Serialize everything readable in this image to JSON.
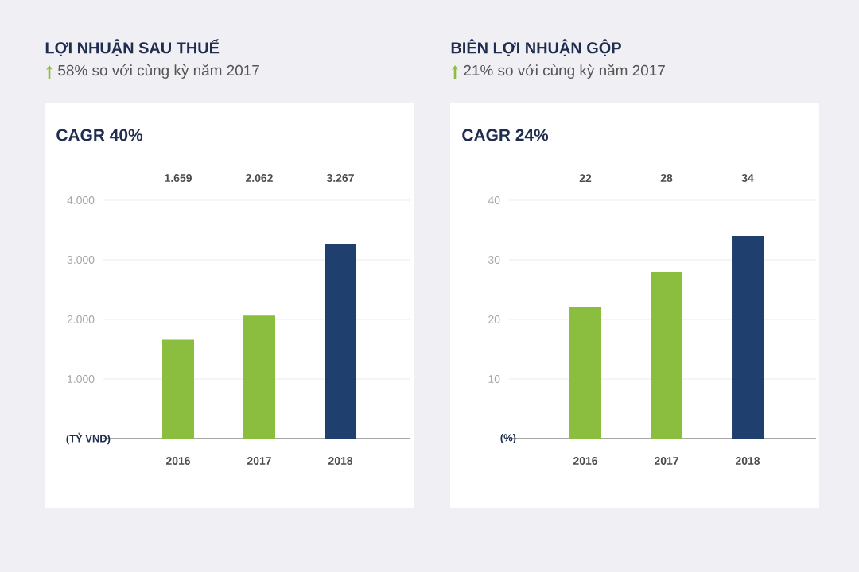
{
  "chart_data": [
    {
      "type": "bar",
      "title": "LỢI NHUẬN SAU THUẾ",
      "subtitle": "58% so với cùng kỳ năm 2017",
      "annotations": [
        "CAGR 40%"
      ],
      "ylabel": "(TỶ VND)",
      "categories": [
        "2016",
        "2017",
        "2018"
      ],
      "values": [
        1659,
        2062,
        3267
      ],
      "value_labels": [
        "1.659",
        "2.062",
        "3.267"
      ],
      "colors": [
        "#8bbd3e",
        "#8bbd3e",
        "#1f3f6e"
      ],
      "ylim": [
        0,
        4000
      ],
      "yticks": [
        {
          "value": 1000,
          "label": "1.000"
        },
        {
          "value": 2000,
          "label": "2.000"
        },
        {
          "value": 3000,
          "label": "3.000"
        },
        {
          "value": 4000,
          "label": "4.000"
        }
      ],
      "grid": "y"
    },
    {
      "type": "bar",
      "title": "BIÊN LỢI NHUẬN GỘP",
      "subtitle": "21% so với cùng kỳ năm 2017",
      "annotations": [
        "CAGR 24%"
      ],
      "ylabel": "(%)",
      "categories": [
        "2016",
        "2017",
        "2018"
      ],
      "values": [
        22,
        28,
        34
      ],
      "value_labels": [
        "22",
        "28",
        "34"
      ],
      "colors": [
        "#8bbd3e",
        "#8bbd3e",
        "#1f3f6e"
      ],
      "ylim": [
        0,
        40
      ],
      "yticks": [
        10,
        20,
        30,
        40
      ],
      "grid": "y"
    }
  ]
}
